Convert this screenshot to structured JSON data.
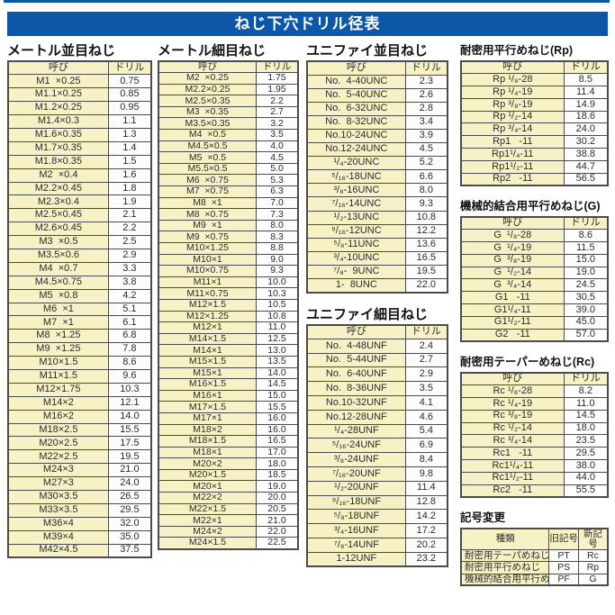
{
  "title": "ねじ下穴ドリル径表",
  "col_headers": {
    "name": "呼び",
    "drill": "ドリル"
  },
  "colors": {
    "banner": "#0d57a8",
    "cell_yellow": "#f6f2c6",
    "border": "#4b4b4b",
    "text": "#2b2b2b"
  },
  "sections": {
    "metric_coarse": {
      "title": "メートル並目ねじ",
      "rows": [
        [
          "M1  ×0.25",
          "0.75"
        ],
        [
          "M1.1×0.25",
          "0.85"
        ],
        [
          "M1.2×0.25",
          "0.95"
        ],
        [
          "M1.4×0.3",
          "1.1"
        ],
        [
          "M1.6×0.35",
          "1.3"
        ],
        [
          "M1.7×0.35",
          "1.4"
        ],
        [
          "M1.8×0.35",
          "1.5"
        ],
        [
          "M2  ×0.4",
          "1.6"
        ],
        [
          "M2.2×0.45",
          "1.8"
        ],
        [
          "M2.3×0.4",
          "1.9"
        ],
        [
          "M2.5×0.45",
          "2.1"
        ],
        [
          "M2.6×0.45",
          "2.2"
        ],
        [
          "M3  ×0.5",
          "2.5"
        ],
        [
          "M3.5×0.6",
          "2.9"
        ],
        [
          "M4  ×0.7",
          "3.3"
        ],
        [
          "M4.5×0.75",
          "3.8"
        ],
        [
          "M5  ×0.8",
          "4.2"
        ],
        [
          "M6  ×1",
          "5.1"
        ],
        [
          "M7  ×1",
          "6.1"
        ],
        [
          "M8  ×1.25",
          "6.8"
        ],
        [
          "M9  ×1.25",
          "7.8"
        ],
        [
          "M10×1.5",
          "8.6"
        ],
        [
          "M11×1.5",
          "9.6"
        ],
        [
          "M12×1.75",
          "10.3"
        ],
        [
          "M14×2",
          "12.1"
        ],
        [
          "M16×2",
          "14.0"
        ],
        [
          "M18×2.5",
          "15.5"
        ],
        [
          "M20×2.5",
          "17.5"
        ],
        [
          "M22×2.5",
          "19.5"
        ],
        [
          "M24×3",
          "21.0"
        ],
        [
          "M27×3",
          "24.0"
        ],
        [
          "M30×3.5",
          "26.5"
        ],
        [
          "M33×3.5",
          "29.5"
        ],
        [
          "M36×4",
          "32.0"
        ],
        [
          "M39×4",
          "35.0"
        ],
        [
          "M42×4.5",
          "37.5"
        ]
      ]
    },
    "metric_fine": {
      "title": "メートル細目ねじ",
      "rows": [
        [
          "M2  ×0.25",
          "1.75"
        ],
        [
          "M2.2×0.25",
          "1.95"
        ],
        [
          "M2.5×0.35",
          "2.2"
        ],
        [
          "M3  ×0.35",
          "2.7"
        ],
        [
          "M3.5×0.35",
          "3.2"
        ],
        [
          "M4  ×0.5",
          "3.5"
        ],
        [
          "M4.5×0.5",
          "4.0"
        ],
        [
          "M5  ×0.5",
          "4.5"
        ],
        [
          "M5.5×0.5",
          "5.0"
        ],
        [
          "M6  ×0.75",
          "5.3"
        ],
        [
          "M7  ×0.75",
          "6.3"
        ],
        [
          "M8  ×1",
          "7.0"
        ],
        [
          "M8  ×0.75",
          "7.3"
        ],
        [
          "M9  ×1",
          "8.0"
        ],
        [
          "M9  ×0.75",
          "8.3"
        ],
        [
          "M10×1.25",
          "8.8"
        ],
        [
          "M10×1",
          "9.0"
        ],
        [
          "M10×0.75",
          "9.3"
        ],
        [
          "M11×1",
          "10.0"
        ],
        [
          "M11×0.75",
          "10.3"
        ],
        [
          "M12×1.5",
          "10.5"
        ],
        [
          "M12×1.25",
          "10.8"
        ],
        [
          "M12×1",
          "11.0"
        ],
        [
          "M14×1.5",
          "12.5"
        ],
        [
          "M14×1",
          "13.0"
        ],
        [
          "M15×1.5",
          "13.5"
        ],
        [
          "M15×1",
          "14.0"
        ],
        [
          "M16×1.5",
          "14.5"
        ],
        [
          "M16×1",
          "15.0"
        ],
        [
          "M17×1.5",
          "15.5"
        ],
        [
          "M17×1",
          "16.0"
        ],
        [
          "M18×2",
          "16.0"
        ],
        [
          "M18×1.5",
          "16.5"
        ],
        [
          "M18×1",
          "17.0"
        ],
        [
          "M20×2",
          "18.0"
        ],
        [
          "M20×1.5",
          "18.5"
        ],
        [
          "M20×1",
          "19.0"
        ],
        [
          "M22×2",
          "20.0"
        ],
        [
          "M22×1.5",
          "20.5"
        ],
        [
          "M22×1",
          "21.0"
        ],
        [
          "M24×2",
          "22.0"
        ],
        [
          "M24×1.5",
          "22.5"
        ]
      ]
    },
    "unified_coarse": {
      "title": "ユニファイ並目ねじ",
      "rows": [
        [
          "No.  4-40UNC",
          "2.3"
        ],
        [
          "No.  5-40UNC",
          "2.6"
        ],
        [
          "No.  6-32UNC",
          "2.8"
        ],
        [
          "No.  8-32UNC",
          "3.4"
        ],
        [
          "No.10-24UNC",
          "3.9"
        ],
        [
          "No.12-24UNC",
          "4.5"
        ],
        [
          "¹/₄-20UNC",
          "5.2"
        ],
        [
          "⁵/₁₆-18UNC",
          "6.6"
        ],
        [
          "³/₈-16UNC",
          "8.0"
        ],
        [
          "⁷/₁₆-14UNC",
          "9.3"
        ],
        [
          "¹/₂-13UNC",
          "10.8"
        ],
        [
          "⁹/₁₆-12UNC",
          "12.2"
        ],
        [
          "⁵/₈-11UNC",
          "13.6"
        ],
        [
          "³/₄-10UNC",
          "16.5"
        ],
        [
          "⁷/₈-  9UNC",
          "19.5"
        ],
        [
          "1-  8UNC",
          "22.0"
        ]
      ]
    },
    "unified_fine": {
      "title": "ユニファイ細目ねじ",
      "rows": [
        [
          "No.  4-48UNF",
          "2.4"
        ],
        [
          "No.  5-44UNF",
          "2.7"
        ],
        [
          "No.  6-40UNF",
          "2.9"
        ],
        [
          "No.  8-36UNF",
          "3.5"
        ],
        [
          "No.10-32UNF",
          "4.1"
        ],
        [
          "No.12-28UNF",
          "4.6"
        ],
        [
          "¹/₄-28UNF",
          "5.4"
        ],
        [
          "⁵/₁₆-24UNF",
          "6.9"
        ],
        [
          "³/₈-24UNF",
          "8.4"
        ],
        [
          "⁷/₁₆-20UNF",
          "9.8"
        ],
        [
          "¹/₂-20UNF",
          "11.4"
        ],
        [
          "⁹/₁₆-18UNF",
          "12.8"
        ],
        [
          "⁵/₈-18UNF",
          "14.2"
        ],
        [
          "³/₄-16UNF",
          "17.2"
        ],
        [
          "⁷/₈-14UNF",
          "20.2"
        ],
        [
          "1-12UNF",
          "23.2"
        ]
      ]
    },
    "rp": {
      "title": "耐密用平行めねじ(Rp)",
      "rows": [
        [
          "Rp ¹/₈-28",
          "8.5"
        ],
        [
          "Rp ¹/₄-19",
          "11.4"
        ],
        [
          "Rp ³/₈-19",
          "14.9"
        ],
        [
          "Rp ¹/₂-14",
          "18.6"
        ],
        [
          "Rp ³/₄-14",
          "24.0"
        ],
        [
          "Rp1   -11",
          "30.2"
        ],
        [
          "Rp1¹/₄-11",
          "38.8"
        ],
        [
          "Rp1¹/₂-11",
          "44.7"
        ],
        [
          "Rp2   -11",
          "56.5"
        ]
      ]
    },
    "g": {
      "title": "機械的結合用平行めねじ(G)",
      "rows": [
        [
          "G  ¹/₈-28",
          "8.6"
        ],
        [
          "G  ¹/₄-19",
          "11.5"
        ],
        [
          "G  ³/₈-19",
          "15.0"
        ],
        [
          "G  ¹/₂-14",
          "19.0"
        ],
        [
          "G  ³/₄-14",
          "24.5"
        ],
        [
          "G1   -11",
          "30.5"
        ],
        [
          "G1¹/₄-11",
          "39.0"
        ],
        [
          "G1¹/₂-11",
          "45.0"
        ],
        [
          "G2   -11",
          "57.0"
        ]
      ]
    },
    "rc": {
      "title": "耐密用テーパーめねじ(Rc)",
      "rows": [
        [
          "Rc ¹/₈-28",
          "8.2"
        ],
        [
          "Rc ¹/₄-19",
          "11.0"
        ],
        [
          "Rc ³/₈-19",
          "14.5"
        ],
        [
          "Rc ¹/₂-14",
          "18.0"
        ],
        [
          "Rc ³/₄-14",
          "23.5"
        ],
        [
          "Rc1   -11",
          "29.5"
        ],
        [
          "Rc1¹/₄-11",
          "38.0"
        ],
        [
          "Rc1¹/₂-11",
          "44.0"
        ],
        [
          "Rc2   -11",
          "55.5"
        ]
      ]
    },
    "symbol_change": {
      "title": "記号変更",
      "headers": [
        "種類",
        "旧記号",
        "新記号"
      ],
      "rows": [
        [
          "耐密用テーパめねじ",
          "PT",
          "Rc"
        ],
        [
          "耐密用平行めねじ",
          "PS",
          "Rp"
        ],
        [
          "機械的結合用平行めねじ",
          "PF",
          "G"
        ]
      ]
    }
  }
}
